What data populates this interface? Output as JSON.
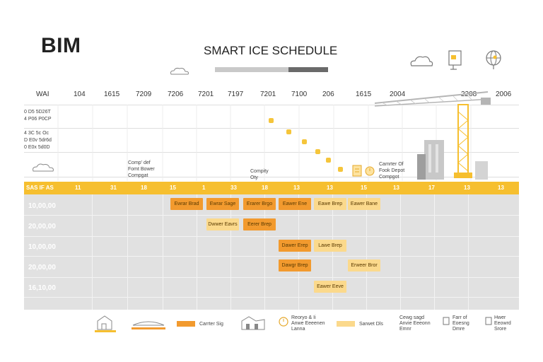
{
  "brand": "BIM",
  "title": "SMART ICE SCHEDULE",
  "progress": {
    "fraction": 0.35
  },
  "header_labels": [
    "WAI",
    "104",
    "1615",
    "7209",
    "7206",
    "7201",
    "7197",
    "7201",
    "7100",
    "206",
    "1615",
    "2004",
    "2208",
    "2006"
  ],
  "side_notes": {
    "top": [
      "0  D5 5D26T",
      "4  P06 P0CP",
      "4  3C 5c Oc",
      "D  E0v 5dr6d",
      "0  E0x 5d0D"
    ],
    "left_annotation": [
      "Comp' def",
      "Fomt Bower",
      "Compgat"
    ],
    "mid_annotation": [
      "Compity",
      "Oty"
    ],
    "right_annotation": [
      "Camrter Of",
      "Fook Depot",
      "Compgot"
    ]
  },
  "yellow_bar_labels": [
    "SAS IF AS",
    "11",
    "31",
    "18",
    "15",
    "1",
    "33",
    "18",
    "13",
    "13",
    "15",
    "13",
    "17",
    "13",
    "13"
  ],
  "rows": [
    "10,00,00",
    "20,00,00",
    "10,00,00",
    "20,00,00",
    "16,10,00"
  ],
  "tasks": [
    {
      "row": 0,
      "col": 4,
      "span": 1,
      "label": "Ewrar Brad",
      "style": "orange"
    },
    {
      "row": 0,
      "col": 5,
      "span": 1,
      "label": "Ewrar Sage",
      "style": "orange"
    },
    {
      "row": 0,
      "col": 6,
      "span": 1,
      "label": "Erarer Brgo",
      "style": "orange"
    },
    {
      "row": 0,
      "col": 7,
      "span": 1,
      "label": "Eawer Ene",
      "style": "orange"
    },
    {
      "row": 0,
      "col": 8,
      "span": 1,
      "label": "Eawe Brep",
      "style": "light"
    },
    {
      "row": 0,
      "col": 9,
      "span": 1,
      "label": "Eawer Bane",
      "style": "light"
    },
    {
      "row": 1,
      "col": 5,
      "span": 1,
      "label": "Dwwer Eavrs",
      "style": "light"
    },
    {
      "row": 1,
      "col": 6,
      "span": 1,
      "label": "Eerer Brep",
      "style": "orange"
    },
    {
      "row": 2,
      "col": 7,
      "span": 1,
      "label": "Dawer Erep",
      "style": "orange"
    },
    {
      "row": 2,
      "col": 8,
      "span": 1,
      "label": "Lawe Brep",
      "style": "light"
    },
    {
      "row": 3,
      "col": 7,
      "span": 1,
      "label": "Dawgr Brep",
      "style": "orange"
    },
    {
      "row": 3,
      "col": 9,
      "span": 1,
      "label": "Erweer Bror",
      "style": "light"
    },
    {
      "row": 4,
      "col": 8,
      "span": 1,
      "label": "Eawer Eeve",
      "style": "light"
    }
  ],
  "legend": {
    "item1": "Carrter Sig",
    "item2": [
      "Reoryo & Ii",
      "Anwe Eeeenen",
      "Lanna"
    ],
    "item3": "Sarwet Dls",
    "item4": [
      "Cewg sagd",
      "Anvie Eeeonn",
      "Emnr"
    ],
    "item5": [
      "Farr of",
      "Eoesng",
      "Dmre"
    ],
    "item6": [
      "Hwer",
      "Eeowrd",
      "Srore"
    ]
  },
  "colors": {
    "accent": "#f6bf2f",
    "orange": "#f29a2e",
    "light": "#fbd98c",
    "grid": "#e1e1e1"
  }
}
